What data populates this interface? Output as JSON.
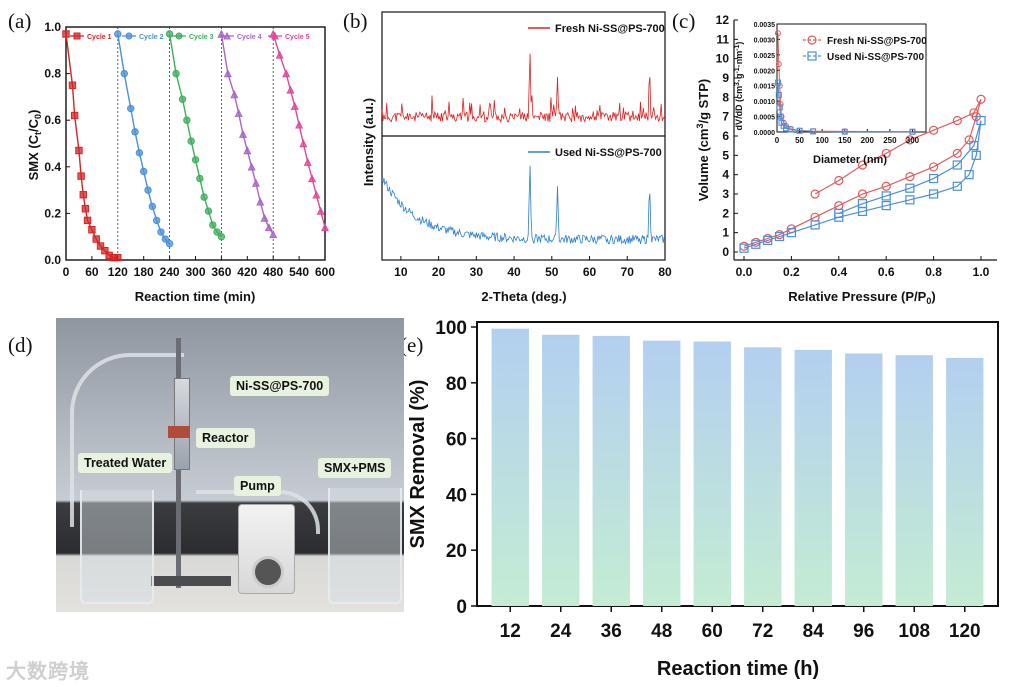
{
  "panels": {
    "a": "(a)",
    "b": "(b)",
    "c": "(c)",
    "d": "(d)",
    "e": "(e)"
  },
  "watermark": "大数跨境",
  "chart_data": [
    {
      "id": "a",
      "type": "line",
      "title": "",
      "xlabel": "Reaction time (min)",
      "ylabel": "SMX (Ct/C0)",
      "xlim": [
        0,
        600
      ],
      "ylim": [
        0,
        1.0
      ],
      "xticks": [
        0,
        60,
        120,
        180,
        240,
        300,
        360,
        420,
        480,
        540,
        600
      ],
      "yticks": [
        0.0,
        0.2,
        0.4,
        0.6,
        0.8,
        1.0
      ],
      "series": [
        {
          "name": "Cycle 1",
          "color": "#d42424",
          "marker": "square",
          "x": [
            0,
            15,
            20,
            30,
            35,
            40,
            45,
            50,
            60,
            70,
            80,
            90,
            100,
            110,
            120
          ],
          "y": [
            0.97,
            0.75,
            0.62,
            0.47,
            0.36,
            0.28,
            0.22,
            0.17,
            0.13,
            0.09,
            0.06,
            0.04,
            0.02,
            0.01,
            0.01
          ]
        },
        {
          "name": "Cycle 2",
          "color": "#4a90d9",
          "marker": "circle",
          "x": [
            120,
            135,
            150,
            160,
            170,
            180,
            190,
            200,
            210,
            220,
            230,
            240
          ],
          "y": [
            0.97,
            0.8,
            0.65,
            0.55,
            0.46,
            0.38,
            0.3,
            0.23,
            0.17,
            0.12,
            0.09,
            0.07
          ]
        },
        {
          "name": "Cycle 3",
          "color": "#3fae5e",
          "marker": "circle",
          "x": [
            240,
            255,
            270,
            280,
            290,
            300,
            310,
            320,
            330,
            340,
            350,
            360
          ],
          "y": [
            0.97,
            0.8,
            0.69,
            0.6,
            0.51,
            0.43,
            0.35,
            0.27,
            0.21,
            0.15,
            0.12,
            0.1
          ]
        },
        {
          "name": "Cycle 4",
          "color": "#a964c8",
          "marker": "triangle",
          "x": [
            360,
            375,
            390,
            400,
            410,
            420,
            430,
            440,
            450,
            460,
            470,
            480
          ],
          "y": [
            0.97,
            0.8,
            0.71,
            0.63,
            0.54,
            0.47,
            0.4,
            0.33,
            0.25,
            0.18,
            0.14,
            0.11
          ]
        },
        {
          "name": "Cycle 5",
          "color": "#e0479a",
          "marker": "triangle",
          "x": [
            480,
            495,
            510,
            520,
            530,
            540,
            550,
            560,
            570,
            580,
            590,
            600
          ],
          "y": [
            0.97,
            0.88,
            0.8,
            0.73,
            0.66,
            0.58,
            0.5,
            0.42,
            0.35,
            0.28,
            0.21,
            0.14
          ]
        }
      ]
    },
    {
      "id": "b",
      "type": "line",
      "title": "",
      "xlabel": "2-Theta (deg.)",
      "ylabel": "Intensity (a.u.)",
      "xlim": [
        5,
        80
      ],
      "xticks": [
        10,
        20,
        30,
        40,
        50,
        60,
        70,
        80
      ],
      "series": [
        {
          "name": "Fresh Ni-SS@PS-700",
          "color": "#e02020",
          "peaks": [
            26.5,
            44.2,
            51.5,
            75.9
          ]
        },
        {
          "name": "Used Ni-SS@PS-700",
          "color": "#2b7fd6",
          "peaks": [
            44.2,
            51.5,
            75.9
          ]
        }
      ]
    },
    {
      "id": "c",
      "type": "line",
      "title": "",
      "xlabel": "Relative Pressure (P/P0)",
      "ylabel": "Volume (cm3/g STP)",
      "xlim": [
        0.0,
        1.0
      ],
      "ylim": [
        0,
        12
      ],
      "xticks": [
        0.0,
        0.2,
        0.4,
        0.6,
        0.8,
        1.0
      ],
      "yticks": [
        0,
        1,
        2,
        3,
        4,
        5,
        6,
        7,
        8,
        9,
        10,
        11,
        12
      ],
      "series": [
        {
          "name": "Fresh Ni-SS@PS-700",
          "color": "#e25a5a",
          "marker": "circle",
          "x": [
            0.0,
            0.05,
            0.1,
            0.15,
            0.2,
            0.3,
            0.4,
            0.5,
            0.6,
            0.7,
            0.8,
            0.9,
            0.95,
            0.98,
            1.0,
            0.97,
            0.9,
            0.8,
            0.7,
            0.6,
            0.5,
            0.4,
            0.3
          ],
          "y": [
            0.3,
            0.5,
            0.7,
            0.9,
            1.2,
            1.8,
            2.4,
            3.0,
            3.4,
            3.9,
            4.4,
            5.1,
            5.8,
            7.0,
            7.9,
            7.2,
            6.8,
            6.3,
            5.8,
            5.1,
            4.5,
            3.7,
            3.0
          ]
        },
        {
          "name": "Used Ni-SS@PS-700",
          "color": "#4a8fdc",
          "marker": "square",
          "x": [
            0.0,
            0.05,
            0.1,
            0.15,
            0.2,
            0.3,
            0.4,
            0.5,
            0.6,
            0.7,
            0.8,
            0.9,
            0.95,
            0.98,
            1.0,
            0.97,
            0.9,
            0.8,
            0.7,
            0.6,
            0.5,
            0.4
          ],
          "y": [
            0.2,
            0.4,
            0.6,
            0.8,
            1.0,
            1.4,
            1.8,
            2.1,
            2.4,
            2.7,
            3.0,
            3.4,
            4.0,
            5.0,
            6.8,
            5.5,
            4.5,
            3.8,
            3.3,
            2.9,
            2.5,
            2.0
          ]
        }
      ],
      "inset": {
        "xlabel": "Diameter (nm)",
        "ylabel": "dV/dD (cm3·g-1·nm-1)",
        "xlim": [
          0,
          330
        ],
        "ylim": [
          0,
          0.0035
        ],
        "xticks": [
          0,
          50,
          100,
          150,
          200,
          250,
          300
        ],
        "yticks": [
          0.0,
          0.0005,
          0.001,
          0.0015,
          0.002,
          0.0025,
          0.003,
          0.0035
        ],
        "ytick_labels": [
          "0.0000",
          "0.0005",
          "0.0010",
          "0.0015",
          "0.0020",
          "0.0025",
          "0.0030",
          "0.0035"
        ],
        "series": [
          {
            "name": "Fresh Ni-SS@PS-700",
            "color": "#e25a5a",
            "marker": "circle",
            "x": [
              2,
              4,
              6,
              8,
              10,
              15,
              20,
              30,
              50,
              80,
              150,
              300
            ],
            "y": [
              0.0032,
              0.0022,
              0.0015,
              0.0009,
              0.0005,
              0.0003,
              0.0002,
              0.0001,
              5e-05,
              3e-05,
              2e-05,
              1e-05
            ]
          },
          {
            "name": "Used Ni-SS@PS-700",
            "color": "#4a8fdc",
            "marker": "square",
            "x": [
              2,
              4,
              6,
              8,
              10,
              15,
              20,
              30,
              50,
              80,
              150,
              300
            ],
            "y": [
              0.0016,
              0.0012,
              0.0008,
              0.0005,
              0.0003,
              0.0002,
              0.00012,
              8e-05,
              4e-05,
              2e-05,
              1e-05,
              1e-05
            ]
          }
        ]
      }
    },
    {
      "id": "e",
      "type": "bar",
      "title": "",
      "xlabel": "Reaction time (h)",
      "ylabel": "SMX Removal (%)",
      "ylim": [
        0,
        100
      ],
      "yticks": [
        0,
        20,
        40,
        60,
        80,
        100
      ],
      "categories": [
        "12",
        "24",
        "36",
        "48",
        "60",
        "72",
        "84",
        "96",
        "108",
        "120"
      ],
      "values": [
        99.4,
        97.2,
        96.8,
        95.1,
        94.8,
        92.7,
        91.8,
        90.5,
        89.9,
        88.9
      ]
    }
  ],
  "photo": {
    "labels": {
      "catalyst": "Ni-SS@PS-700",
      "reactor": "Reactor",
      "treated": "Treated Water",
      "pump": "Pump",
      "feed": "SMX+PMS"
    }
  }
}
